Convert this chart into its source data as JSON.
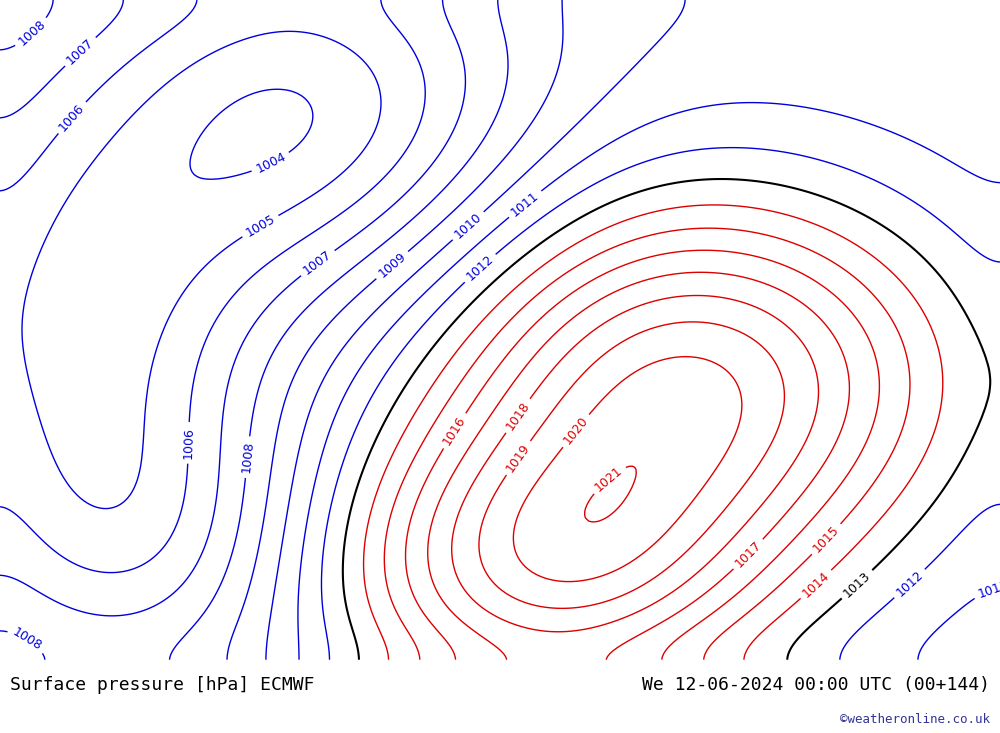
{
  "title_left": "Surface pressure [hPa] ECMWF",
  "title_right": "We 12-06-2024 00:00 UTC (00+144)",
  "watermark": "©weatheronline.co.uk",
  "bg_land_color": "#aae87a",
  "bg_sea_color": "#d8f0f8",
  "bg_highland_color": "#e0e0e0",
  "contour_color_low": "#0000dd",
  "contour_color_mid": "#000000",
  "contour_color_high": "#dd0000",
  "label_fontsize": 9,
  "title_fontsize": 13,
  "watermark_fontsize": 9,
  "bottom_bar_color": "#e8e8e8",
  "figsize": [
    10.0,
    7.33
  ],
  "dpi": 100
}
